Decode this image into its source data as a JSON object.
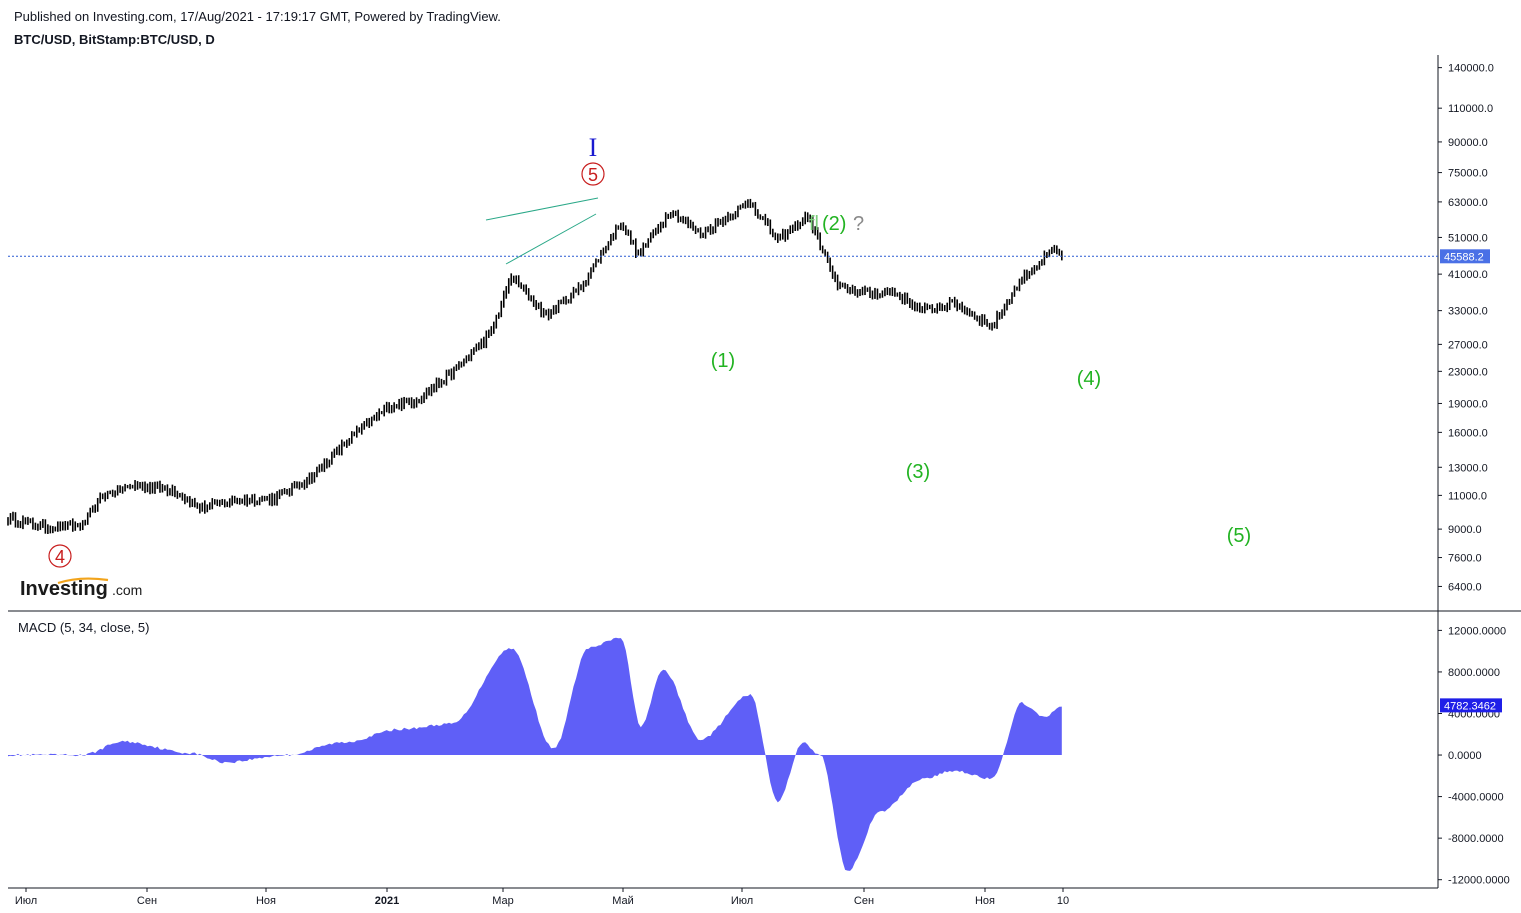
{
  "header": {
    "published": "Published on Investing.com, 17/Aug/2021 - 17:19:17 GMT, Powered by TradingView.",
    "symbol": "BTC/USD, BitStamp:BTC/USD, D"
  },
  "logo": {
    "brand": "Investing",
    "suffix": ".com"
  },
  "colors": {
    "price_line": "#2a5ad2",
    "price_badge": "#4a70e6",
    "macd_fill": "#5f5ff7",
    "macd_badge": "#1f1fe8",
    "wave_green": "#22b322",
    "wave_red": "#c81e1e",
    "wave_blue": "#1a1ad0",
    "channel": "#2aa888"
  },
  "chart_data": [
    {
      "type": "candlestick",
      "title": "BTC/USD, BitStamp:BTC/USD, D",
      "scale": "log",
      "ylim": [
        5800,
        165000
      ],
      "y_ticks": [
        "140000.0",
        "110000.0",
        "90000.0",
        "75000.0",
        "63000.0",
        "51000.0",
        "41000.0",
        "33000.0",
        "27000.0",
        "23000.0",
        "19000.0",
        "16000.0",
        "13000.0",
        "11000.0",
        "9000.0",
        "7600.0",
        "6400.0"
      ],
      "x_ticks": [
        "Июл",
        "Сен",
        "Ноя",
        "2021",
        "Мар",
        "Май",
        "Июл",
        "Сен",
        "Ноя",
        "10"
      ],
      "last_price": {
        "label": "45588.2",
        "value": 45588.2
      },
      "series": [
        {
          "name": "BTC/USD",
          "x": [
            "2020-06-20",
            "2020-07-05",
            "2020-07-20",
            "2020-07-28",
            "2020-08-10",
            "2020-08-25",
            "2020-09-05",
            "2020-09-20",
            "2020-10-05",
            "2020-10-20",
            "2020-11-05",
            "2020-11-20",
            "2020-12-01",
            "2020-12-16",
            "2020-12-31",
            "2021-01-08",
            "2021-01-22",
            "2021-02-05",
            "2021-02-21",
            "2021-02-28",
            "2021-03-13",
            "2021-03-25",
            "2021-04-14",
            "2021-04-25",
            "2021-05-07",
            "2021-05-12",
            "2021-05-19",
            "2021-06-01",
            "2021-06-10",
            "2021-06-22",
            "2021-07-05",
            "2021-07-20",
            "2021-08-01",
            "2021-08-14",
            "2021-08-17"
          ],
          "values": [
            9600,
            9100,
            9200,
            11000,
            11700,
            11400,
            10200,
            10700,
            10800,
            12300,
            15600,
            18700,
            19400,
            23000,
            29000,
            40500,
            32000,
            38000,
            56000,
            46000,
            60000,
            52000,
            63000,
            50000,
            58000,
            49000,
            38000,
            36500,
            37000,
            33000,
            34500,
            30000,
            40000,
            47500,
            45588
          ]
        }
      ],
      "annotations": [
        "4",
        "5",
        "I",
        "(1)",
        "fl",
        "(2)",
        "?",
        "(3)",
        "(4)",
        "(5)"
      ]
    },
    {
      "type": "area",
      "title": "MACD (5, 34, close, 5)",
      "ylim": [
        -12800,
        13000
      ],
      "y_ticks": [
        "12000.0000",
        "8000.0000",
        "4000.0000",
        "0.0000",
        "-4000.0000",
        "-8000.0000",
        "-12000.0000"
      ],
      "last_value": {
        "label": "4782.3462",
        "value": 4782.3462
      },
      "series": [
        {
          "name": "MACD",
          "x": [
            "2020-06-20",
            "2020-07-20",
            "2020-08-05",
            "2020-09-01",
            "2020-09-15",
            "2020-10-10",
            "2020-11-01",
            "2020-11-25",
            "2020-12-15",
            "2021-01-08",
            "2021-01-25",
            "2021-02-08",
            "2021-02-21",
            "2021-03-01",
            "2021-03-10",
            "2021-03-25",
            "2021-04-14",
            "2021-04-25",
            "2021-05-05",
            "2021-05-12",
            "2021-05-23",
            "2021-06-05",
            "2021-06-22",
            "2021-07-05",
            "2021-07-20",
            "2021-08-01",
            "2021-08-10",
            "2021-08-17"
          ],
          "values": [
            0,
            0,
            1300,
            200,
            -700,
            0,
            1200,
            2500,
            3000,
            10300,
            600,
            10300,
            11300,
            2800,
            8200,
            1500,
            5800,
            -4500,
            1200,
            0,
            -11200,
            -5500,
            -2300,
            -1500,
            -2300,
            5000,
            3600,
            4782
          ]
        }
      ]
    }
  ]
}
